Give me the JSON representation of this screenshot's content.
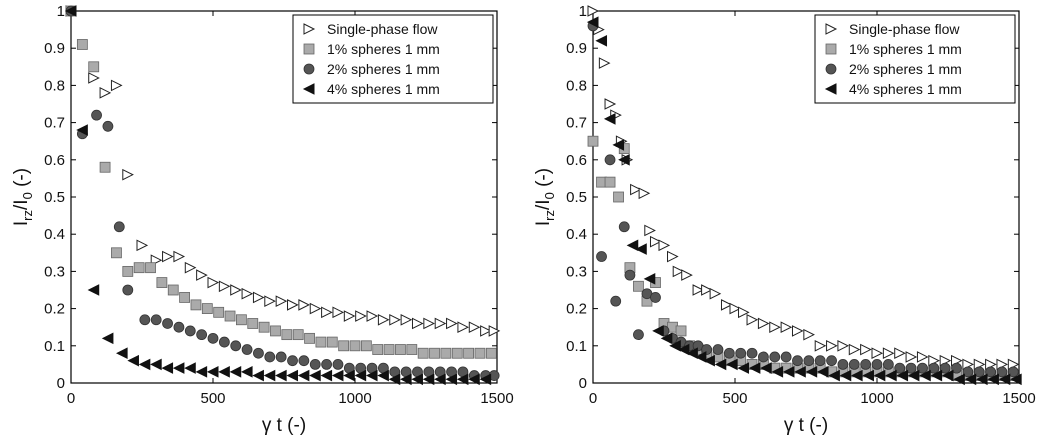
{
  "chart_data": [
    {
      "type": "scatter",
      "xlabel": "γ t (-)",
      "ylabel": "I_rz/I_0 (-)",
      "xlim": [
        0,
        1500
      ],
      "ylim": [
        0,
        1
      ],
      "xticks": [
        "0",
        "500",
        "1000",
        "1500"
      ],
      "yticks": [
        "0",
        "0.1",
        "0.2",
        "0.3",
        "0.4",
        "0.5",
        "0.6",
        "0.7",
        "0.8",
        "0.9",
        "1"
      ],
      "grid": false,
      "legend_position": "top-right",
      "series": [
        {
          "name": "Single-phase flow",
          "marker": "triangle-right",
          "color": "#ffffff",
          "edge": "#222222",
          "x": [
            0,
            80,
            120,
            160,
            200,
            250,
            300,
            340,
            380,
            420,
            460,
            500,
            540,
            580,
            620,
            660,
            700,
            740,
            780,
            820,
            860,
            900,
            940,
            980,
            1020,
            1060,
            1100,
            1140,
            1180,
            1220,
            1260,
            1300,
            1340,
            1380,
            1420,
            1460,
            1490
          ],
          "y": [
            1.0,
            0.82,
            0.78,
            0.8,
            0.56,
            0.37,
            0.33,
            0.34,
            0.34,
            0.31,
            0.29,
            0.27,
            0.26,
            0.25,
            0.24,
            0.23,
            0.22,
            0.22,
            0.21,
            0.21,
            0.2,
            0.19,
            0.19,
            0.18,
            0.18,
            0.18,
            0.17,
            0.17,
            0.17,
            0.16,
            0.16,
            0.16,
            0.16,
            0.15,
            0.15,
            0.14,
            0.14
          ]
        },
        {
          "name": "1% spheres 1 mm",
          "marker": "square",
          "color": "#aaaaaa",
          "edge": "#666666",
          "x": [
            0,
            40,
            80,
            120,
            160,
            200,
            240,
            280,
            320,
            360,
            400,
            440,
            480,
            520,
            560,
            600,
            640,
            680,
            720,
            760,
            800,
            840,
            880,
            920,
            960,
            1000,
            1040,
            1080,
            1120,
            1160,
            1200,
            1240,
            1280,
            1320,
            1360,
            1400,
            1440,
            1480
          ],
          "y": [
            1.0,
            0.91,
            0.85,
            0.58,
            0.35,
            0.3,
            0.31,
            0.31,
            0.27,
            0.25,
            0.23,
            0.21,
            0.2,
            0.19,
            0.18,
            0.17,
            0.16,
            0.15,
            0.14,
            0.13,
            0.13,
            0.12,
            0.11,
            0.11,
            0.1,
            0.1,
            0.1,
            0.09,
            0.09,
            0.09,
            0.09,
            0.08,
            0.08,
            0.08,
            0.08,
            0.08,
            0.08,
            0.08
          ]
        },
        {
          "name": "2% spheres 1 mm",
          "marker": "circle",
          "color": "#555555",
          "edge": "#333333",
          "x": [
            0,
            40,
            90,
            130,
            170,
            200,
            260,
            300,
            340,
            380,
            420,
            460,
            500,
            540,
            580,
            620,
            660,
            700,
            740,
            780,
            820,
            860,
            900,
            940,
            980,
            1020,
            1060,
            1100,
            1140,
            1180,
            1220,
            1260,
            1300,
            1340,
            1380,
            1420,
            1460,
            1490
          ],
          "y": [
            1.0,
            0.67,
            0.72,
            0.69,
            0.42,
            0.25,
            0.17,
            0.17,
            0.16,
            0.15,
            0.14,
            0.13,
            0.12,
            0.11,
            0.1,
            0.09,
            0.08,
            0.07,
            0.07,
            0.06,
            0.06,
            0.05,
            0.05,
            0.05,
            0.04,
            0.04,
            0.04,
            0.04,
            0.03,
            0.03,
            0.03,
            0.03,
            0.03,
            0.03,
            0.03,
            0.02,
            0.02,
            0.02
          ]
        },
        {
          "name": "4% spheres 1 mm",
          "marker": "triangle-left",
          "color": "#111111",
          "edge": "#111111",
          "x": [
            0,
            40,
            80,
            130,
            180,
            220,
            260,
            300,
            340,
            380,
            420,
            460,
            500,
            540,
            580,
            620,
            660,
            700,
            740,
            780,
            820,
            860,
            900,
            940,
            980,
            1020,
            1060,
            1100,
            1140,
            1180,
            1220,
            1260,
            1300,
            1340,
            1380,
            1420,
            1460
          ],
          "y": [
            1.0,
            0.68,
            0.25,
            0.12,
            0.08,
            0.06,
            0.05,
            0.05,
            0.04,
            0.04,
            0.04,
            0.03,
            0.03,
            0.03,
            0.03,
            0.03,
            0.02,
            0.02,
            0.02,
            0.02,
            0.02,
            0.02,
            0.02,
            0.02,
            0.02,
            0.02,
            0.02,
            0.02,
            0.01,
            0.01,
            0.01,
            0.01,
            0.01,
            0.01,
            0.01,
            0.01,
            0.01
          ]
        }
      ]
    },
    {
      "type": "scatter",
      "xlabel": "γ t (-)",
      "ylabel": "I_rz/I_0 (-)",
      "xlim": [
        0,
        1500
      ],
      "ylim": [
        0,
        1
      ],
      "xticks": [
        "0",
        "500",
        "1000",
        "1500"
      ],
      "yticks": [
        "0",
        "0.1",
        "0.2",
        "0.3",
        "0.4",
        "0.5",
        "0.6",
        "0.7",
        "0.8",
        "0.9",
        "1"
      ],
      "grid": false,
      "legend_position": "top-right",
      "series": [
        {
          "name": "Single-phase flow",
          "marker": "triangle-right",
          "color": "#ffffff",
          "edge": "#222222",
          "x": [
            0,
            20,
            40,
            60,
            80,
            100,
            120,
            150,
            180,
            200,
            220,
            250,
            280,
            300,
            330,
            370,
            400,
            430,
            470,
            500,
            530,
            560,
            600,
            640,
            680,
            720,
            760,
            800,
            840,
            880,
            920,
            960,
            1000,
            1040,
            1080,
            1120,
            1160,
            1200,
            1240,
            1280,
            1320,
            1360,
            1400,
            1440,
            1480
          ],
          "y": [
            1.0,
            0.95,
            0.86,
            0.75,
            0.72,
            0.65,
            0.6,
            0.52,
            0.51,
            0.41,
            0.38,
            0.37,
            0.34,
            0.3,
            0.29,
            0.25,
            0.25,
            0.24,
            0.21,
            0.2,
            0.19,
            0.17,
            0.16,
            0.15,
            0.15,
            0.14,
            0.13,
            0.1,
            0.1,
            0.1,
            0.09,
            0.09,
            0.08,
            0.08,
            0.08,
            0.07,
            0.07,
            0.06,
            0.06,
            0.06,
            0.05,
            0.05,
            0.05,
            0.05,
            0.05
          ]
        },
        {
          "name": "1% spheres 1 mm",
          "marker": "square",
          "color": "#aaaaaa",
          "edge": "#666666",
          "x": [
            0,
            30,
            60,
            90,
            110,
            130,
            160,
            190,
            220,
            250,
            280,
            310,
            340,
            370,
            400,
            440,
            480,
            520,
            560,
            600,
            640,
            680,
            720,
            760,
            800,
            840,
            880,
            920,
            960,
            1000,
            1040,
            1080,
            1120,
            1160,
            1200,
            1240,
            1280,
            1320,
            1360,
            1400,
            1440,
            1480
          ],
          "y": [
            0.65,
            0.54,
            0.54,
            0.5,
            0.63,
            0.31,
            0.26,
            0.22,
            0.27,
            0.16,
            0.15,
            0.14,
            0.1,
            0.09,
            0.08,
            0.07,
            0.06,
            0.06,
            0.05,
            0.05,
            0.04,
            0.04,
            0.04,
            0.04,
            0.04,
            0.03,
            0.03,
            0.03,
            0.03,
            0.03,
            0.03,
            0.03,
            0.03,
            0.03,
            0.03,
            0.03,
            0.02,
            0.02,
            0.02,
            0.02,
            0.02,
            0.02
          ]
        },
        {
          "name": "2% spheres 1 mm",
          "marker": "circle",
          "color": "#555555",
          "edge": "#333333",
          "x": [
            0,
            30,
            60,
            80,
            110,
            130,
            160,
            190,
            220,
            250,
            280,
            310,
            340,
            370,
            400,
            440,
            480,
            520,
            560,
            600,
            640,
            680,
            720,
            760,
            800,
            840,
            880,
            920,
            960,
            1000,
            1040,
            1080,
            1120,
            1160,
            1200,
            1240,
            1280,
            1320,
            1360,
            1400,
            1440,
            1480
          ],
          "y": [
            0.96,
            0.34,
            0.6,
            0.22,
            0.42,
            0.29,
            0.13,
            0.24,
            0.23,
            0.14,
            0.12,
            0.11,
            0.1,
            0.1,
            0.09,
            0.09,
            0.08,
            0.08,
            0.08,
            0.07,
            0.07,
            0.07,
            0.06,
            0.06,
            0.06,
            0.06,
            0.05,
            0.05,
            0.05,
            0.05,
            0.05,
            0.04,
            0.04,
            0.04,
            0.04,
            0.04,
            0.04,
            0.03,
            0.03,
            0.03,
            0.03,
            0.03
          ]
        },
        {
          "name": "4% spheres 1 mm",
          "marker": "triangle-left",
          "color": "#111111",
          "edge": "#111111",
          "x": [
            0,
            30,
            60,
            90,
            110,
            140,
            170,
            200,
            230,
            260,
            290,
            320,
            350,
            380,
            410,
            450,
            490,
            530,
            570,
            610,
            650,
            690,
            730,
            770,
            810,
            850,
            890,
            930,
            970,
            1010,
            1050,
            1090,
            1130,
            1170,
            1210,
            1250,
            1290,
            1330,
            1370,
            1410,
            1450,
            1490
          ],
          "y": [
            0.97,
            0.92,
            0.71,
            0.64,
            0.6,
            0.37,
            0.36,
            0.28,
            0.14,
            0.12,
            0.1,
            0.09,
            0.08,
            0.07,
            0.06,
            0.05,
            0.05,
            0.04,
            0.04,
            0.04,
            0.03,
            0.03,
            0.03,
            0.03,
            0.03,
            0.02,
            0.02,
            0.02,
            0.02,
            0.02,
            0.02,
            0.02,
            0.02,
            0.02,
            0.02,
            0.02,
            0.01,
            0.01,
            0.01,
            0.01,
            0.01,
            0.01
          ]
        }
      ]
    }
  ]
}
